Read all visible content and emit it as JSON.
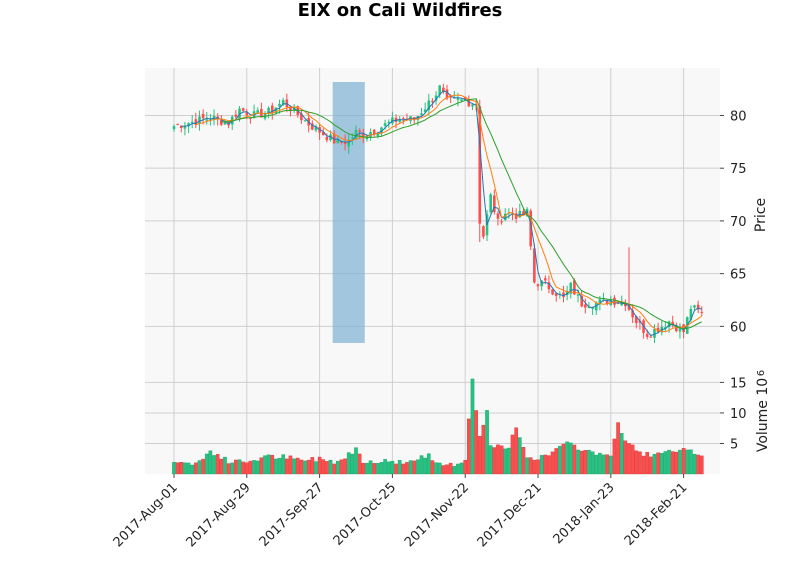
{
  "chart_data": {
    "title": "EIX on Cali Wildfires",
    "type": "candlestick",
    "price_axis": {
      "label": "Price",
      "ylim": [
        57,
        84.5
      ],
      "ticks": [
        60,
        65,
        70,
        75,
        80
      ]
    },
    "volume_axis": {
      "label": "Volume  10",
      "exponent": "6",
      "ylim": [
        0,
        19
      ],
      "ticks": [
        5,
        10,
        15
      ]
    },
    "x_tick_labels": [
      "2017-Aug-01",
      "2017-Aug-29",
      "2017-Sep-27",
      "2017-Oct-25",
      "2017-Nov-22",
      "2017-Dec-21",
      "2018-Jan-23",
      "2018-Feb-21"
    ],
    "x_tick_index": [
      0,
      20,
      40,
      60,
      80,
      100,
      120,
      140
    ],
    "n_sessions": 146,
    "highlight_window": {
      "from_index": 44,
      "to_index": 52
    },
    "grid": true,
    "colors": {
      "up": "#26c281",
      "down": "#ff4d4d",
      "ma_fast": "#1f77b4",
      "ma_mid": "#ff7f0e",
      "ma_slow": "#2ca02c",
      "highlight": "#7fb0d4",
      "panel_bg": "#f8f8f8"
    },
    "price_keypoints": [
      [
        0,
        79.0
      ],
      [
        5,
        79.4
      ],
      [
        10,
        79.8
      ],
      [
        15,
        79.3
      ],
      [
        18,
        80.6
      ],
      [
        22,
        80.0
      ],
      [
        26,
        80.3
      ],
      [
        30,
        81.3
      ],
      [
        33,
        80.4
      ],
      [
        37,
        79.2
      ],
      [
        40,
        78.5
      ],
      [
        43,
        77.8
      ],
      [
        45,
        77.4
      ],
      [
        48,
        77.6
      ],
      [
        50,
        78.4
      ],
      [
        52,
        78.2
      ],
      [
        55,
        78.6
      ],
      [
        58,
        79.1
      ],
      [
        62,
        79.7
      ],
      [
        66,
        79.6
      ],
      [
        68,
        80.4
      ],
      [
        71,
        81.6
      ],
      [
        73,
        82.6
      ],
      [
        75,
        81.2
      ],
      [
        77,
        81.4
      ],
      [
        80,
        81.4
      ],
      [
        83,
        81.1
      ],
      [
        84,
        70.0
      ],
      [
        85,
        68.6
      ],
      [
        87,
        72.3
      ],
      [
        89,
        69.8
      ],
      [
        91,
        70.8
      ],
      [
        95,
        70.5
      ],
      [
        97,
        70.8
      ],
      [
        99,
        64.2
      ],
      [
        102,
        64.0
      ],
      [
        105,
        63.2
      ],
      [
        107,
        62.6
      ],
      [
        109,
        63.8
      ],
      [
        112,
        62.2
      ],
      [
        116,
        62.2
      ],
      [
        120,
        62.5
      ],
      [
        124,
        62.3
      ],
      [
        127,
        60.5
      ],
      [
        130,
        59.3
      ],
      [
        133,
        59.8
      ],
      [
        136,
        60.5
      ],
      [
        140,
        59.5
      ],
      [
        142,
        61.8
      ],
      [
        145,
        61.2
      ]
    ],
    "volume_keypoints": [
      [
        0,
        2.3
      ],
      [
        5,
        1.5
      ],
      [
        8,
        2.5
      ],
      [
        10,
        3.8
      ],
      [
        15,
        2.0
      ],
      [
        20,
        2.0
      ],
      [
        25,
        2.8
      ],
      [
        30,
        2.8
      ],
      [
        35,
        2.2
      ],
      [
        40,
        2.5
      ],
      [
        45,
        2.0
      ],
      [
        48,
        3.2
      ],
      [
        50,
        4.2
      ],
      [
        52,
        2.2
      ],
      [
        60,
        2.0
      ],
      [
        65,
        2.0
      ],
      [
        70,
        3.0
      ],
      [
        72,
        2.0
      ],
      [
        78,
        1.5
      ],
      [
        80,
        2.5
      ],
      [
        82,
        16.0
      ],
      [
        83,
        10.0
      ],
      [
        84,
        6.0
      ],
      [
        86,
        10.0
      ],
      [
        87,
        4.5
      ],
      [
        92,
        4.2
      ],
      [
        94,
        8.0
      ],
      [
        95,
        6.0
      ],
      [
        97,
        3.0
      ],
      [
        100,
        2.5
      ],
      [
        104,
        3.5
      ],
      [
        107,
        5.0
      ],
      [
        110,
        4.5
      ],
      [
        115,
        3.5
      ],
      [
        120,
        3.2
      ],
      [
        122,
        8.0
      ],
      [
        124,
        5.5
      ],
      [
        128,
        3.5
      ],
      [
        132,
        3.0
      ],
      [
        135,
        3.5
      ],
      [
        138,
        3.6
      ],
      [
        140,
        3.8
      ],
      [
        145,
        3.2
      ]
    ]
  }
}
